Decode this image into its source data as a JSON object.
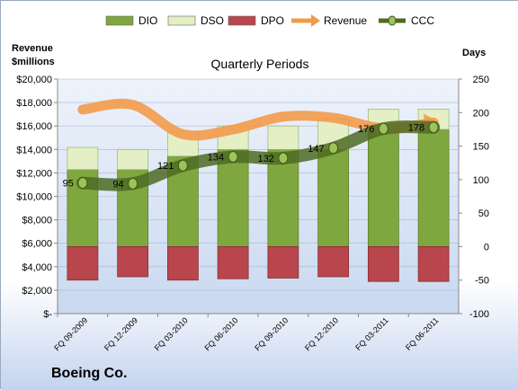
{
  "chart_data": {
    "type": "bar",
    "title": "Quarterly Periods",
    "company": "Boeing Co.",
    "ylabel": "Revenue $millions",
    "y2label": "Days",
    "ylim": [
      0,
      20000
    ],
    "y2lim": [
      -100,
      250
    ],
    "yticks": [
      "$-",
      "$2,000",
      "$4,000",
      "$6,000",
      "$8,000",
      "$10,000",
      "$12,000",
      "$14,000",
      "$16,000",
      "$18,000",
      "$20,000"
    ],
    "y2ticks": [
      "-100",
      "-50",
      "0",
      "50",
      "100",
      "150",
      "200",
      "250"
    ],
    "categories": [
      "FQ 09-2009",
      "FQ 12-2009",
      "FQ 03-2010",
      "FQ 06-2010",
      "FQ 09-2010",
      "FQ 12-2010",
      "FQ 03-2011",
      "FQ 06-2011"
    ],
    "series": [
      {
        "name": "DIO",
        "axis": "days",
        "values": [
          115,
          115,
          135,
          145,
          145,
          145,
          175,
          175
        ],
        "color": "#7fa73f"
      },
      {
        "name": "DSO",
        "axis": "days",
        "values": [
          33,
          30,
          37,
          35,
          35,
          45,
          30,
          30
        ],
        "color": "#e4efc6"
      },
      {
        "name": "DPO",
        "axis": "days",
        "values": [
          -50,
          -45,
          -50,
          -48,
          -47,
          -45,
          -52,
          -52
        ],
        "color": "#b8464c"
      },
      {
        "name": "Revenue",
        "axis": "revenue",
        "values": [
          17400,
          17800,
          15300,
          15700,
          16800,
          16700,
          15800,
          16300
        ],
        "color": "#f39a4a"
      },
      {
        "name": "CCC",
        "axis": "days",
        "values": [
          95,
          94,
          121,
          134,
          132,
          147,
          176,
          178
        ],
        "color": "#4d6b23"
      }
    ],
    "ccc_labels": [
      "95",
      "94",
      "121",
      "134",
      "132",
      "147",
      "176",
      "178"
    ],
    "legend": "top"
  }
}
